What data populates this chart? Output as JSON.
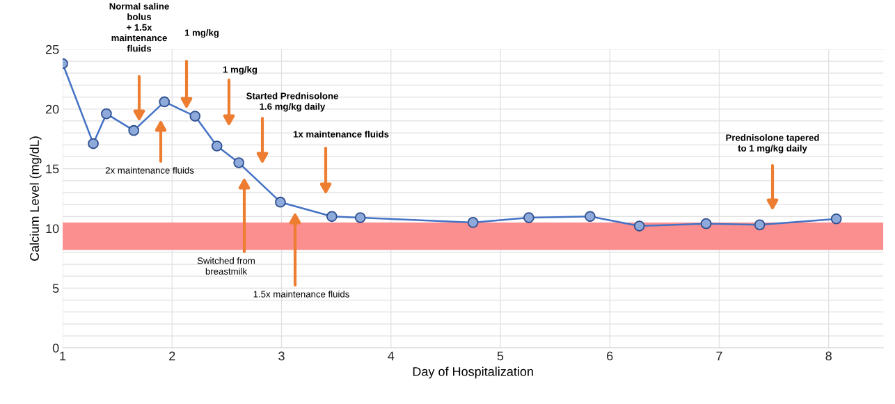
{
  "chart_data": {
    "type": "line",
    "xlabel": "Day of Hospitalization",
    "ylabel": "Calcium Level (mg/dL)",
    "x": [
      1,
      1.28,
      1.4,
      1.65,
      1.93,
      2.21,
      2.41,
      2.61,
      2.99,
      3.46,
      3.72,
      4.75,
      5.26,
      5.82,
      6.27,
      6.88,
      7.37,
      8.07
    ],
    "series": [
      {
        "color": "#4472c4",
        "values": [
          23.8,
          17.1,
          19.6,
          18.2,
          20.6,
          19.4,
          16.9,
          15.5,
          12.2,
          11.0,
          10.9,
          10.5,
          10.9,
          11.0,
          10.2,
          10.4,
          10.3,
          10.8
        ]
      }
    ],
    "marker": "circle",
    "line_style": "solid",
    "xlim": [
      1,
      8.5
    ],
    "xticks": [
      1,
      2,
      3,
      4,
      5,
      6,
      7,
      8
    ],
    "ylim": [
      0,
      25
    ],
    "yticks": [
      0,
      {
        "value": 1,
        "label": null
      },
      {
        "value": 2,
        "label": null
      },
      {
        "value": 3,
        "label": null
      },
      {
        "value": 4,
        "label": null
      },
      5,
      {
        "value": 6,
        "label": null
      },
      {
        "value": 7,
        "label": null
      },
      {
        "value": 8,
        "label": null
      },
      {
        "value": 9,
        "label": null
      },
      10,
      {
        "value": 11,
        "label": null
      },
      {
        "value": 12,
        "label": null
      },
      {
        "value": 13,
        "label": null
      },
      {
        "value": 14,
        "label": null
      },
      15,
      {
        "value": 16,
        "label": null
      },
      {
        "value": 17,
        "label": null
      },
      {
        "value": 18,
        "label": null
      },
      {
        "value": 19,
        "label": null
      },
      20,
      {
        "value": 21,
        "label": null
      },
      {
        "value": 22,
        "label": null
      },
      {
        "value": 23,
        "label": null
      },
      {
        "value": 24,
        "label": null
      },
      25
    ],
    "grid": true,
    "bands": [
      {
        "axis": "y",
        "from": 8.2,
        "to": 10.5,
        "color": "#fb8f8f"
      }
    ],
    "annotations": [
      "Normal saline\nbolus\n+ 1.5x\nmaintenance\nfluids",
      "2x maintenance fluids",
      "1 mg/kg",
      "1 mg/kg",
      "Started Prednisolone\n1.6 mg/kg daily",
      "1x maintenance fluids",
      "Switched from\nbreastmilk",
      "1.5x maintenance fluids",
      "Prednisolone tapered\nto 1 mg/kg daily"
    ]
  }
}
